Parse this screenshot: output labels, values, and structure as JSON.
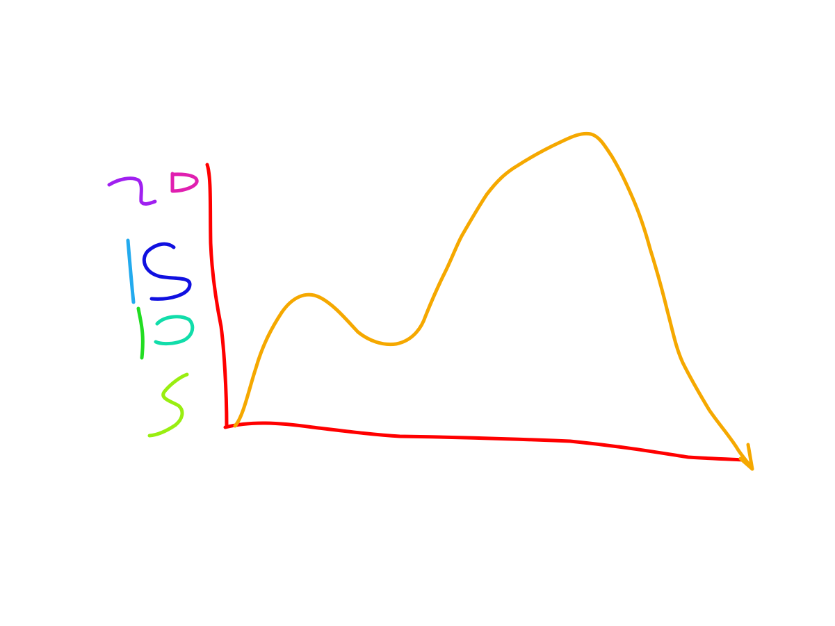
{
  "chart_data": {
    "type": "line",
    "title": "",
    "xlabel": "",
    "ylabel": "",
    "ylim": [
      0,
      21
    ],
    "grid": false,
    "legend": "none",
    "y_ticks": [
      {
        "value": 20,
        "label": "20",
        "colors": [
          "#a020f0",
          "#e01fb0"
        ]
      },
      {
        "value": 15,
        "label": "15",
        "colors": [
          "#22aaee",
          "#1010e0"
        ]
      },
      {
        "value": 10,
        "label": "10",
        "colors": [
          "#22dd22",
          "#11ddaa"
        ]
      },
      {
        "value": 5,
        "label": "5",
        "colors": [
          "#99ee11"
        ]
      }
    ],
    "series": [
      {
        "color": "#f5a800",
        "x": [
          0,
          1,
          2,
          3,
          4,
          5,
          6,
          7,
          8,
          9,
          10,
          11,
          12,
          13,
          14,
          15,
          16,
          17,
          18,
          19,
          20
        ],
        "values": [
          0.3,
          5.0,
          9.2,
          8.2,
          5.6,
          6.3,
          10.5,
          14.5,
          17.2,
          18.6,
          19.6,
          18.2,
          14.8,
          9.5,
          4.5,
          1.0,
          -1.5,
          0,
          0,
          0,
          0
        ]
      }
    ],
    "colors": {
      "axis": "#ff0000",
      "curve": "#f5a800"
    }
  }
}
